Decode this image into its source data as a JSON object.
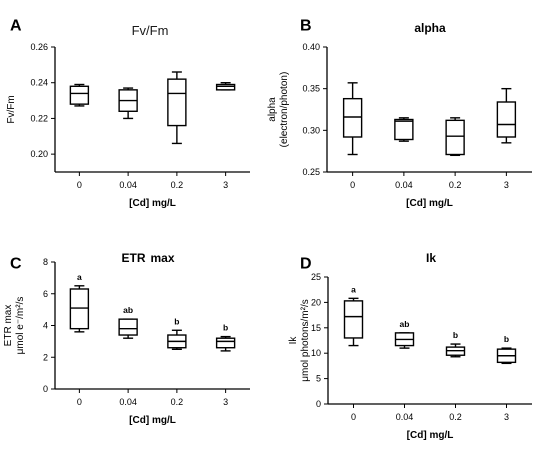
{
  "chart_data": [
    {
      "letter": "A",
      "type": "box",
      "title": "Fv/Fm",
      "title_style": "normal",
      "ylabel": [
        "Fv/Fm"
      ],
      "xlabel": "[Cd] mg/L",
      "categories": [
        "0",
        "0.04",
        "0.2",
        "3"
      ],
      "ylim": [
        0.19,
        0.26
      ],
      "yticks": [
        0.2,
        0.22,
        0.24,
        0.26
      ],
      "ytick_labels": [
        "0.20",
        "0.22",
        "0.24",
        "0.26"
      ],
      "boxes": [
        {
          "min": 0.227,
          "q1": 0.228,
          "median": 0.234,
          "q3": 0.238,
          "max": 0.239
        },
        {
          "min": 0.22,
          "q1": 0.224,
          "median": 0.23,
          "q3": 0.236,
          "max": 0.237
        },
        {
          "min": 0.206,
          "q1": 0.216,
          "median": 0.234,
          "q3": 0.242,
          "max": 0.246
        },
        {
          "min": 0.236,
          "q1": 0.236,
          "median": 0.238,
          "q3": 0.239,
          "max": 0.24
        }
      ],
      "significance": []
    },
    {
      "letter": "B",
      "type": "box",
      "title": "alpha",
      "title_style": "bold",
      "ylabel": [
        "alpha",
        "(electron/photon)"
      ],
      "xlabel": "[Cd] mg/L",
      "categories": [
        "0",
        "0.04",
        "0.2",
        "3"
      ],
      "ylim": [
        0.25,
        0.4
      ],
      "yticks": [
        0.25,
        0.3,
        0.35,
        0.4
      ],
      "ytick_labels": [
        "0.25",
        "0.30",
        "0.35",
        "0.40"
      ],
      "boxes": [
        {
          "min": 0.271,
          "q1": 0.292,
          "median": 0.316,
          "q3": 0.338,
          "max": 0.357
        },
        {
          "min": 0.287,
          "q1": 0.289,
          "median": 0.311,
          "q3": 0.313,
          "max": 0.315
        },
        {
          "min": 0.27,
          "q1": 0.271,
          "median": 0.293,
          "q3": 0.312,
          "max": 0.315
        },
        {
          "min": 0.285,
          "q1": 0.292,
          "median": 0.307,
          "q3": 0.334,
          "max": 0.35
        }
      ],
      "significance": []
    },
    {
      "letter": "C",
      "type": "box",
      "title": "ETR",
      "title_suffix": "max",
      "title_style": "bold",
      "ylabel": [
        "ETR max",
        "μmol e⁻/m²/s"
      ],
      "xlabel": "[Cd] mg/L",
      "categories": [
        "0",
        "0.04",
        "0.2",
        "3"
      ],
      "ylim": [
        0,
        8
      ],
      "yticks": [
        0,
        2,
        4,
        6,
        8
      ],
      "ytick_labels": [
        "0",
        "2",
        "4",
        "6",
        "8"
      ],
      "boxes": [
        {
          "min": 3.6,
          "q1": 3.8,
          "median": 5.1,
          "q3": 6.3,
          "max": 6.5
        },
        {
          "min": 3.2,
          "q1": 3.4,
          "median": 3.8,
          "q3": 4.4,
          "max": 4.4
        },
        {
          "min": 2.5,
          "q1": 2.6,
          "median": 3.0,
          "q3": 3.4,
          "max": 3.7
        },
        {
          "min": 2.4,
          "q1": 2.6,
          "median": 3.0,
          "q3": 3.2,
          "max": 3.3
        }
      ],
      "significance": [
        "a",
        "ab",
        "b",
        "b"
      ]
    },
    {
      "letter": "D",
      "type": "box",
      "title": "Ik",
      "title_style": "bold",
      "ylabel": [
        "Ik",
        "μmol photons/m²/s"
      ],
      "xlabel": "[Cd] mg/L",
      "categories": [
        "0",
        "0.04",
        "0.2",
        "3"
      ],
      "ylim": [
        0,
        25
      ],
      "yticks": [
        0,
        5,
        10,
        15,
        20,
        25
      ],
      "ytick_labels": [
        "0",
        "5",
        "10",
        "15",
        "20",
        "25"
      ],
      "boxes": [
        {
          "min": 11.5,
          "q1": 13.0,
          "median": 17.2,
          "q3": 20.3,
          "max": 20.8
        },
        {
          "min": 11.0,
          "q1": 11.5,
          "median": 12.7,
          "q3": 14.0,
          "max": 14.0
        },
        {
          "min": 9.3,
          "q1": 9.6,
          "median": 10.5,
          "q3": 11.2,
          "max": 11.8
        },
        {
          "min": 8.0,
          "q1": 8.2,
          "median": 9.5,
          "q3": 10.8,
          "max": 11.0
        }
      ],
      "significance": [
        "a",
        "ab",
        "b",
        "b"
      ]
    }
  ]
}
